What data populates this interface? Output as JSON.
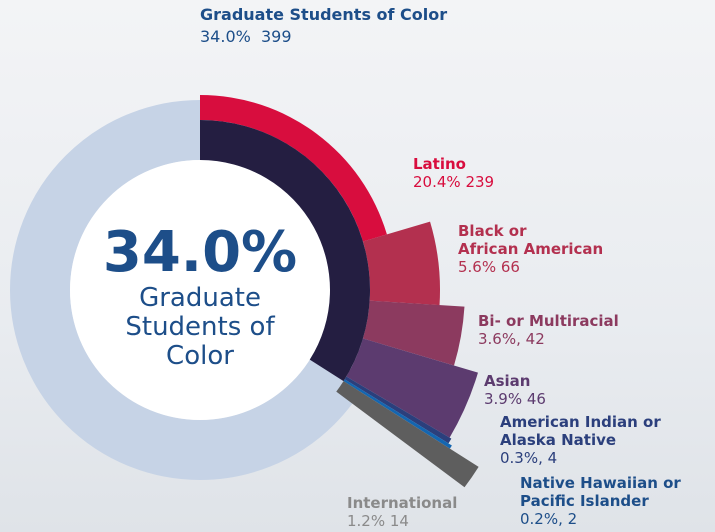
{
  "chart_data": {
    "type": "radial-breakdown",
    "total": {
      "name": "Graduate Students of Color",
      "value": 34.0,
      "value_label": "34.0%",
      "count": 399,
      "color": "#1b1438"
    },
    "categories": [
      "Latino",
      "Black or\nAfrican American",
      "Bi- or Multiracial",
      "Asian",
      "American Indian or\nAlaska Native",
      "Native Hawaiian or\nPacific Islander",
      "International"
    ],
    "values": [
      20.4,
      5.6,
      3.6,
      3.9,
      0.3,
      0.2,
      1.2
    ],
    "value_labels": [
      "20.4%",
      "5.6%",
      "3.6%,",
      "3.9%",
      "0.3%,",
      "0.2%,",
      "1.2%"
    ],
    "counts": [
      239,
      66,
      42,
      46,
      4,
      2,
      14
    ],
    "colors": [
      "#d80d3e",
      "#b3304f",
      "#8c3a5f",
      "#5c3b6f",
      "#2b3f7c",
      "#1466b0",
      "#5e5e5e"
    ]
  }
}
